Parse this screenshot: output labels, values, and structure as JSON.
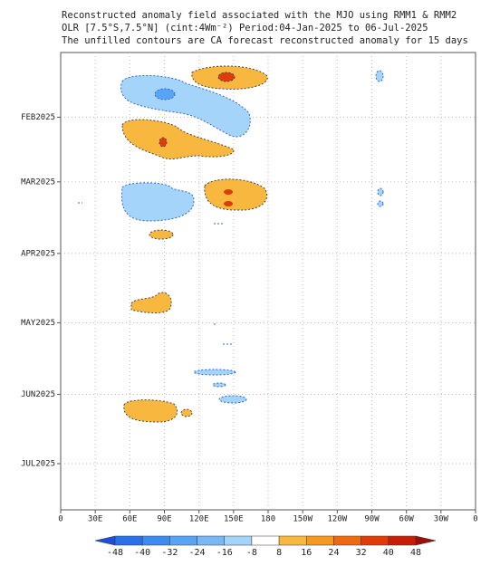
{
  "chart_data": {
    "type": "hovmoller",
    "title_lines": [
      "Reconstructed anomaly field associated with the MJO using RMM1 & RMM2",
      "OLR [7.5°S,7.5°N] (cint:4Wm⁻²) Period:04-Jan-2025 to 06-Jul-2025",
      "The unfilled contours are CA forecast reconstructed anomaly for 15 days"
    ],
    "xlim": [
      0,
      360
    ],
    "xticks": [
      0,
      {
        "value": 30,
        "label": "30E"
      },
      {
        "value": 60,
        "label": "60E"
      },
      {
        "value": 90,
        "label": "90E"
      },
      {
        "value": 120,
        "label": "120E"
      },
      {
        "value": 150,
        "label": "150E"
      },
      {
        "value": 180,
        "label": "180"
      },
      {
        "value": 210,
        "label": "150W"
      },
      {
        "value": 240,
        "label": "120W"
      },
      {
        "value": 270,
        "label": "90W"
      },
      {
        "value": 300,
        "label": "60W"
      },
      {
        "value": 330,
        "label": "30W"
      },
      {
        "value": 360,
        "label": "0"
      }
    ],
    "ylim": [
      3,
      201
    ],
    "yticks": [
      {
        "value": 31,
        "label": "FEB2025"
      },
      {
        "value": 59,
        "label": "MAR2025"
      },
      {
        "value": 90,
        "label": "APR2025"
      },
      {
        "value": 120,
        "label": "MAY2025"
      },
      {
        "value": 151,
        "label": "JUN2025"
      },
      {
        "value": 181,
        "label": "JUL2025"
      }
    ],
    "grid": true,
    "colorbar": {
      "levels": [
        -48,
        -40,
        -32,
        -24,
        -16,
        -8,
        8,
        16,
        24,
        32,
        40,
        48
      ],
      "colors": [
        "#1c50d8",
        "#2a70e8",
        "#3c8cf0",
        "#58a4f4",
        "#78b8f6",
        "#a4d4fa",
        "#ffffff",
        "#f8b840",
        "#f49820",
        "#ee6a10",
        "#e03c08",
        "#c81e08",
        "#a00c08"
      ]
    }
  }
}
